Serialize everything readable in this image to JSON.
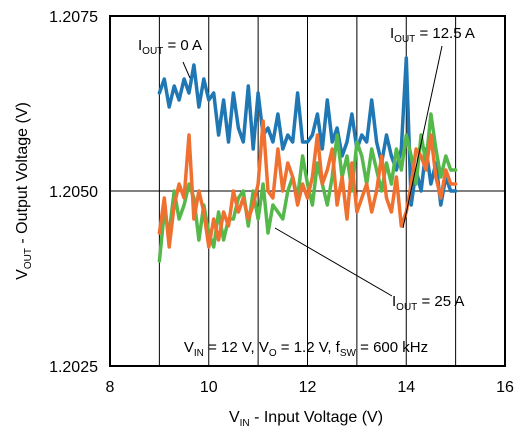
{
  "chart_data": {
    "type": "line",
    "xlabel": "V",
    "xlabel_sub": "IN",
    "xlabel_rest": " - Input Voltage (V)",
    "ylabel": "V",
    "ylabel_sub": "OUT",
    "ylabel_rest": " - Output Voltage (V)",
    "xlim": [
      8,
      16
    ],
    "ylim": [
      1.2025,
      1.2075
    ],
    "x_ticks": [
      8,
      10,
      12,
      14,
      16
    ],
    "x_tick_labels": [
      "8",
      "10",
      "12",
      "14",
      "16"
    ],
    "y_ticks": [
      1.2025,
      1.205,
      1.2075
    ],
    "y_tick_labels": [
      "1.2025",
      "1.2050",
      "1.2075"
    ],
    "grid": true,
    "conditions": {
      "p1": "V",
      "s1": "IN",
      "t1": " = 12 V, V",
      "s2": "O",
      "t2": " = 1.2 V, f",
      "s3": "SW",
      "t3": " = 600 kHz"
    },
    "series": [
      {
        "name": "I_OUT = 0 A",
        "label_main": "I",
        "label_sub": "OUT",
        "label_rest": " = 0 A",
        "color": "#1f77b4",
        "x": [
          9.0,
          9.1,
          9.2,
          9.3,
          9.4,
          9.5,
          9.6,
          9.7,
          9.8,
          9.9,
          10.0,
          10.1,
          10.2,
          10.3,
          10.4,
          10.5,
          10.6,
          10.7,
          10.8,
          10.9,
          11.0,
          11.1,
          11.2,
          11.3,
          11.4,
          11.5,
          11.6,
          11.7,
          11.8,
          11.9,
          12.0,
          12.1,
          12.2,
          12.3,
          12.4,
          12.5,
          12.6,
          12.7,
          12.8,
          12.9,
          13.0,
          13.1,
          13.2,
          13.3,
          13.4,
          13.5,
          13.6,
          13.7,
          13.8,
          13.9,
          14.0,
          14.1,
          14.2,
          14.3,
          14.4,
          14.5,
          14.6,
          14.7,
          14.8,
          14.9,
          15.0
        ],
        "y": [
          1.2064,
          1.2066,
          1.2062,
          1.2065,
          1.2063,
          1.2066,
          1.2064,
          1.2068,
          1.2062,
          1.2066,
          1.2063,
          1.2064,
          1.2058,
          1.2063,
          1.2057,
          1.2064,
          1.2059,
          1.2057,
          1.2065,
          1.2056,
          1.2064,
          1.2058,
          1.2059,
          1.2057,
          1.2061,
          1.2056,
          1.2058,
          1.2057,
          1.2064,
          1.2057,
          1.2057,
          1.2058,
          1.2061,
          1.2056,
          1.2063,
          1.2057,
          1.2059,
          1.2055,
          1.2057,
          1.2061,
          1.2056,
          1.2058,
          1.2057,
          1.2063,
          1.2057,
          1.2054,
          1.2058,
          1.2055,
          1.2053,
          1.2056,
          1.2069,
          1.2048,
          1.2053,
          1.205,
          1.2056,
          1.2051,
          1.2054,
          1.2048,
          1.2052,
          1.205,
          1.205
        ]
      },
      {
        "name": "I_OUT = 12.5 A",
        "label_main": "I",
        "label_sub": "OUT",
        "label_rest": " = 12.5 A",
        "color": "#f07030",
        "x": [
          9.0,
          9.1,
          9.2,
          9.3,
          9.4,
          9.5,
          9.6,
          9.7,
          9.8,
          9.9,
          10.0,
          10.1,
          10.2,
          10.3,
          10.4,
          10.5,
          10.6,
          10.7,
          10.8,
          10.9,
          11.0,
          11.1,
          11.2,
          11.3,
          11.4,
          11.5,
          11.6,
          11.7,
          11.8,
          11.9,
          12.0,
          12.1,
          12.2,
          12.3,
          12.4,
          12.5,
          12.6,
          12.7,
          12.8,
          12.9,
          13.0,
          13.1,
          13.2,
          13.3,
          13.4,
          13.5,
          13.6,
          13.7,
          13.8,
          13.9,
          14.0,
          14.1,
          14.2,
          14.3,
          14.4,
          14.5,
          14.6,
          14.7,
          14.8,
          14.9,
          15.0
        ],
        "y": [
          1.2044,
          1.2049,
          1.2042,
          1.2048,
          1.2051,
          1.2049,
          1.2058,
          1.2046,
          1.205,
          1.2047,
          1.2042,
          1.2046,
          1.2043,
          1.2047,
          1.2045,
          1.205,
          1.2047,
          1.2049,
          1.2046,
          1.2048,
          1.2051,
          1.206,
          1.205,
          1.2049,
          1.2056,
          1.205,
          1.2054,
          1.2052,
          1.2048,
          1.2051,
          1.2049,
          1.2052,
          1.2058,
          1.2051,
          1.2053,
          1.2056,
          1.2048,
          1.2052,
          1.2046,
          1.2054,
          1.2047,
          1.2049,
          1.2051,
          1.2047,
          1.205,
          1.2055,
          1.2049,
          1.2047,
          1.2052,
          1.2045,
          1.2047,
          1.2051,
          1.2056,
          1.2055,
          1.2053,
          1.2058,
          1.2052,
          1.2049,
          1.2053,
          1.2051,
          1.2051
        ]
      },
      {
        "name": "I_OUT = 25 A",
        "label_main": "I",
        "label_sub": "OUT",
        "label_rest": " = 25 A",
        "color": "#55b84a",
        "x": [
          9.0,
          9.1,
          9.2,
          9.3,
          9.4,
          9.5,
          9.6,
          9.7,
          9.8,
          9.9,
          10.0,
          10.1,
          10.2,
          10.3,
          10.4,
          10.5,
          10.6,
          10.7,
          10.8,
          10.9,
          11.0,
          11.1,
          11.2,
          11.3,
          11.4,
          11.5,
          11.6,
          11.7,
          11.8,
          11.9,
          12.0,
          12.1,
          12.2,
          12.3,
          12.4,
          12.5,
          12.6,
          12.7,
          12.8,
          12.9,
          13.0,
          13.1,
          13.2,
          13.3,
          13.4,
          13.5,
          13.6,
          13.7,
          13.8,
          13.9,
          14.0,
          14.1,
          14.2,
          14.3,
          14.4,
          14.5,
          14.6,
          14.7,
          14.8,
          14.9,
          15.0
        ],
        "y": [
          1.204,
          1.2047,
          1.2044,
          1.205,
          1.2046,
          1.2048,
          1.2051,
          1.2049,
          1.2043,
          1.2048,
          1.2044,
          1.2042,
          1.2047,
          1.2043,
          1.2046,
          1.2046,
          1.2049,
          1.205,
          1.2045,
          1.205,
          1.2046,
          1.2051,
          1.2044,
          1.2048,
          1.2047,
          1.2046,
          1.205,
          1.2052,
          1.2049,
          1.2055,
          1.2051,
          1.2048,
          1.2054,
          1.2051,
          1.2048,
          1.2052,
          1.2058,
          1.2052,
          1.2055,
          1.205,
          1.2057,
          1.2055,
          1.2051,
          1.2056,
          1.2053,
          1.205,
          1.2054,
          1.2051,
          1.2056,
          1.2053,
          1.2058,
          1.2055,
          1.2051,
          1.2058,
          1.2054,
          1.2061,
          1.2056,
          1.2052,
          1.2055,
          1.2053,
          1.2053
        ]
      }
    ]
  }
}
